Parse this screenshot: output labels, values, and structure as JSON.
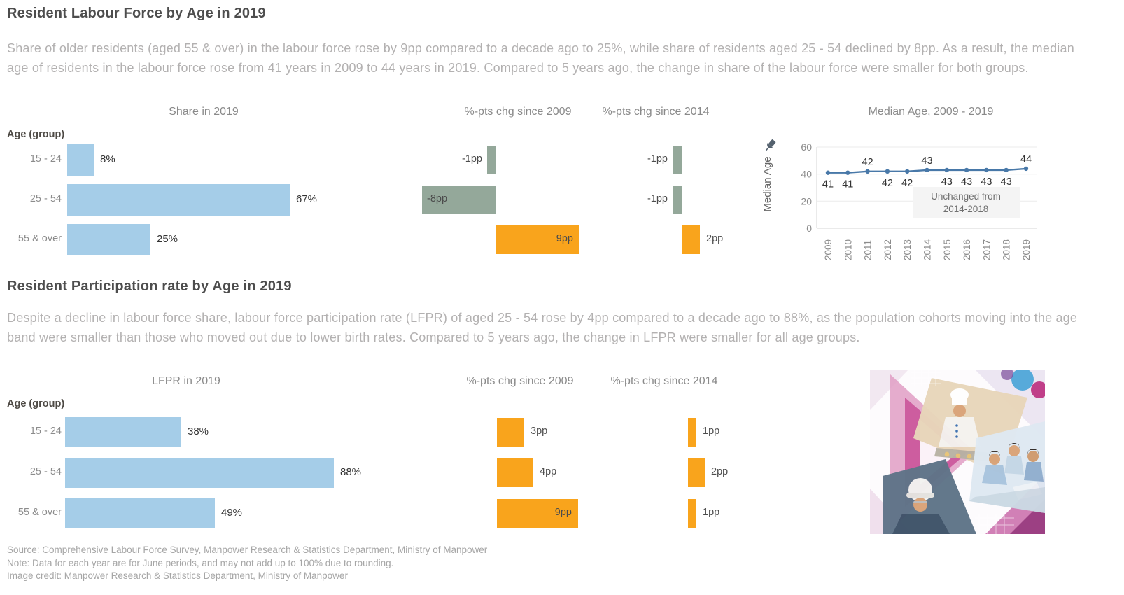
{
  "section1": {
    "title": "Resident Labour Force by Age in 2019",
    "description": "Share of older residents (aged 55 & over) in the labour force rose by 9pp compared to a decade ago to 25%, while share of residents aged 25 - 54 declined by 8pp. As a result, the median age of residents in the labour force rose from 41 years in 2009 to 44 years in 2019. Compared to 5 years ago, the change in share of the labour force were smaller for both groups.",
    "age_group_label": "Age (group)"
  },
  "section2": {
    "title": "Resident Participation rate by Age in 2019",
    "description": "Despite a decline in labour force share, labour force participation rate (LFPR) of aged 25 - 54 rose by 4pp compared to a decade ago to 88%, as the population cohorts moving into the age band were smaller than those who moved out due to lower birth rates. Compared to 5 years ago, the change in LFPR were smaller for all age groups.",
    "age_group_label": "Age (group)"
  },
  "footer": {
    "source": "Source: Comprehensive Labour Force Survey, Manpower Research & Statistics Department, Ministry of Manpower",
    "note": "Note: Data for each year are for June periods, and may not add up to 100% due to rounding.",
    "image_credit": "Image credit: Manpower Research & Statistics Department, Ministry of Manpower"
  },
  "colors": {
    "bar_blue": "#A5CDE8",
    "bar_sage": "#94A89A",
    "bar_orange": "#F9A41C",
    "line_blue": "#4878A8",
    "annotation_bg": "#f4f4f4"
  },
  "chart_data": [
    {
      "type": "bar",
      "title": "Share in 2019",
      "orientation": "horizontal",
      "categories": [
        "15 - 24",
        "25 - 54",
        "55 & over"
      ],
      "values": [
        8,
        67,
        25
      ],
      "labels": [
        "8%",
        "67%",
        "25%"
      ],
      "unit": "%"
    },
    {
      "type": "bar",
      "title": "%-pts chg since 2009",
      "orientation": "horizontal",
      "diverging": true,
      "categories": [
        "15 - 24",
        "25 - 54",
        "55 & over"
      ],
      "values": [
        -1,
        -8,
        9
      ],
      "labels": [
        "-1pp",
        "-8pp",
        "9pp"
      ],
      "unit": "pp"
    },
    {
      "type": "bar",
      "title": "%-pts chg since 2014",
      "orientation": "horizontal",
      "diverging": true,
      "categories": [
        "15 - 24",
        "25 - 54",
        "55 & over"
      ],
      "values": [
        -1,
        -1,
        2
      ],
      "labels": [
        "-1pp",
        "-1pp",
        "2pp"
      ],
      "unit": "pp"
    },
    {
      "type": "line",
      "title": "Median Age, 2009 - 2019",
      "ylabel": "Median Age",
      "x": [
        2009,
        2010,
        2011,
        2012,
        2013,
        2014,
        2015,
        2016,
        2017,
        2018,
        2019
      ],
      "values": [
        41,
        41,
        42,
        42,
        42,
        43,
        43,
        43,
        43,
        43,
        44
      ],
      "yticks": [
        0,
        20,
        40,
        60
      ],
      "ylim": [
        0,
        60
      ],
      "grid": true,
      "label_positions": [
        "below",
        "below",
        "above",
        "below",
        "below",
        "above",
        "below",
        "below",
        "below",
        "below",
        "above"
      ],
      "annotation": "Unchanged from 2014-2018",
      "annotation_lines": [
        "Unchanged from",
        "2014-2018"
      ]
    },
    {
      "type": "bar",
      "title": "LFPR in 2019",
      "orientation": "horizontal",
      "categories": [
        "15 - 24",
        "25 - 54",
        "55 & over"
      ],
      "values": [
        38,
        88,
        49
      ],
      "labels": [
        "38%",
        "88%",
        "49%"
      ],
      "unit": "%"
    },
    {
      "type": "bar",
      "title": "%-pts chg since 2009",
      "orientation": "horizontal",
      "diverging": true,
      "categories": [
        "15 - 24",
        "25 - 54",
        "55 & over"
      ],
      "values": [
        3,
        4,
        9
      ],
      "labels": [
        "3pp",
        "4pp",
        "9pp"
      ],
      "unit": "pp"
    },
    {
      "type": "bar",
      "title": "%-pts chg since 2014",
      "orientation": "horizontal",
      "diverging": true,
      "categories": [
        "15 - 24",
        "25 - 54",
        "55 & over"
      ],
      "values": [
        1,
        2,
        1
      ],
      "labels": [
        "1pp",
        "2pp",
        "1pp"
      ],
      "unit": "pp"
    }
  ]
}
